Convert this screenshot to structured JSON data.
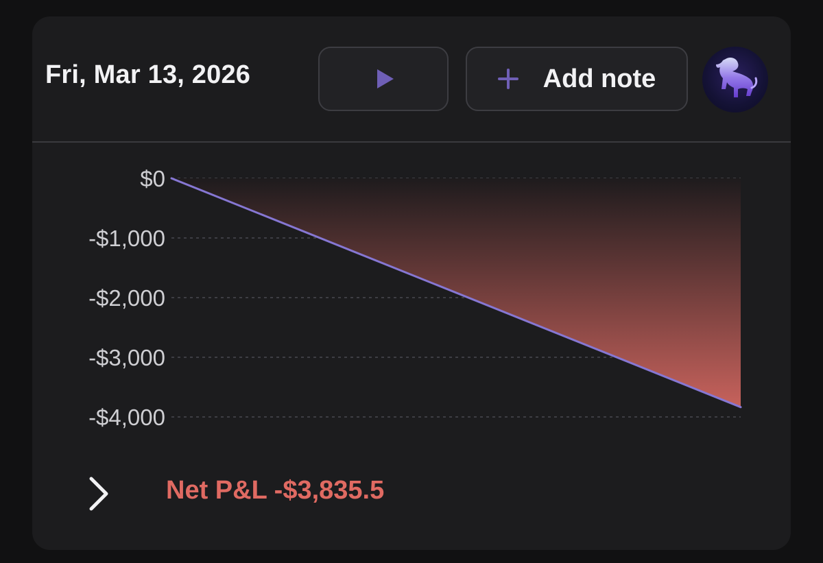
{
  "header": {
    "date": "Fri, Mar 13, 2026",
    "play_icon": "play-icon",
    "add_note_label": "Add note",
    "add_icon": "plus-icon",
    "avatar_icon": "bull-logo-icon"
  },
  "colors": {
    "accent": "#6f5fb6",
    "line": "#8677d3",
    "negative": "#e06a62",
    "area_top": "#1e1b1d",
    "area_bottom": "#c7625c"
  },
  "chart_data": {
    "type": "area",
    "title": "",
    "xlabel": "",
    "ylabel": "",
    "ylim": [
      -4000,
      0
    ],
    "y_ticks": [
      "$0",
      "-$1,000",
      "-$2,000",
      "-$3,000",
      "-$4,000"
    ],
    "y_tick_values": [
      0,
      -1000,
      -2000,
      -3000,
      -4000
    ],
    "grid": "horizontal dashed",
    "series": [
      {
        "x": [
          0,
          1
        ],
        "values": [
          0,
          -3835.5
        ]
      }
    ]
  },
  "footer": {
    "expand_icon": "chevron-right-icon",
    "net_pnl": "Net P&L -$3,835.5"
  }
}
